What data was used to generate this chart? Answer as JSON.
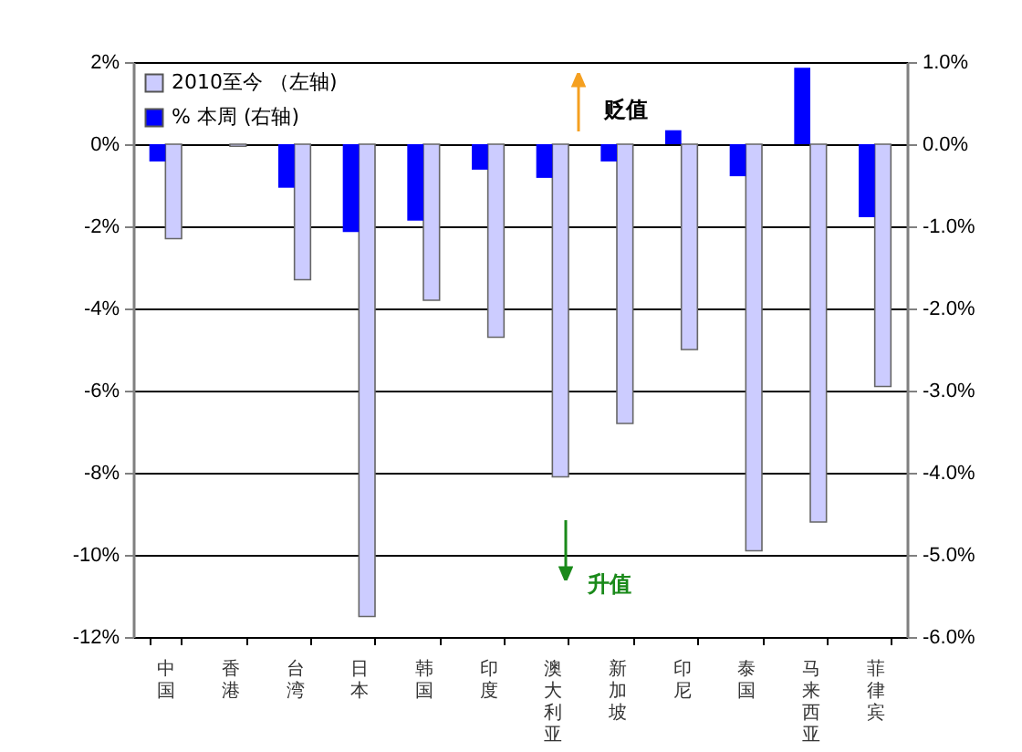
{
  "chart_data": {
    "type": "bar",
    "categories": [
      "中国",
      "香港",
      "台湾",
      "日本",
      "韩国",
      "印度",
      "澳大利亚",
      "新加坡",
      "印尼",
      "泰国",
      "马来西亚",
      "菲律宾"
    ],
    "series": [
      {
        "name": "2010至今 （左轴)",
        "color": "#ccccff",
        "values": [
          -2.3,
          -0.05,
          -3.3,
          -11.5,
          -3.8,
          -4.7,
          -8.1,
          -6.8,
          -5.0,
          -9.9,
          -9.2,
          -5.9
        ]
      },
      {
        "name": "% 本周 (右轴)",
        "color": "#0000ff",
        "axis": "y2",
        "values": [
          -0.21,
          0,
          -0.53,
          -1.07,
          -0.93,
          -0.31,
          -0.41,
          -0.21,
          0.17,
          -0.39,
          0.93,
          -0.89
        ]
      }
    ],
    "ylim": [
      -12,
      2
    ],
    "yticks": [
      {
        "value": -12,
        "label": "-12%"
      },
      {
        "value": -10,
        "label": "-10%"
      },
      {
        "value": -8,
        "label": "-8%"
      },
      {
        "value": -6,
        "label": "-6%"
      },
      {
        "value": -4,
        "label": "-4%"
      },
      {
        "value": -2,
        "label": "-2%"
      },
      {
        "value": 0,
        "label": "0%"
      },
      {
        "value": 2,
        "label": "2%"
      }
    ],
    "y2lim": [
      -6,
      1
    ],
    "y2ticks": [
      {
        "value": -6,
        "label": "-6.0%"
      },
      {
        "value": -5,
        "label": "-5.0%"
      },
      {
        "value": -4,
        "label": "-4.0%"
      },
      {
        "value": -3,
        "label": "-3.0%"
      },
      {
        "value": -2,
        "label": "-2.0%"
      },
      {
        "value": -1,
        "label": "-1.0%"
      },
      {
        "value": 0,
        "label": "0.0%"
      },
      {
        "value": 1,
        "label": "1.0%"
      }
    ],
    "annotations": [
      "贬值",
      "升值"
    ],
    "grid": "y",
    "legend": "top left"
  }
}
